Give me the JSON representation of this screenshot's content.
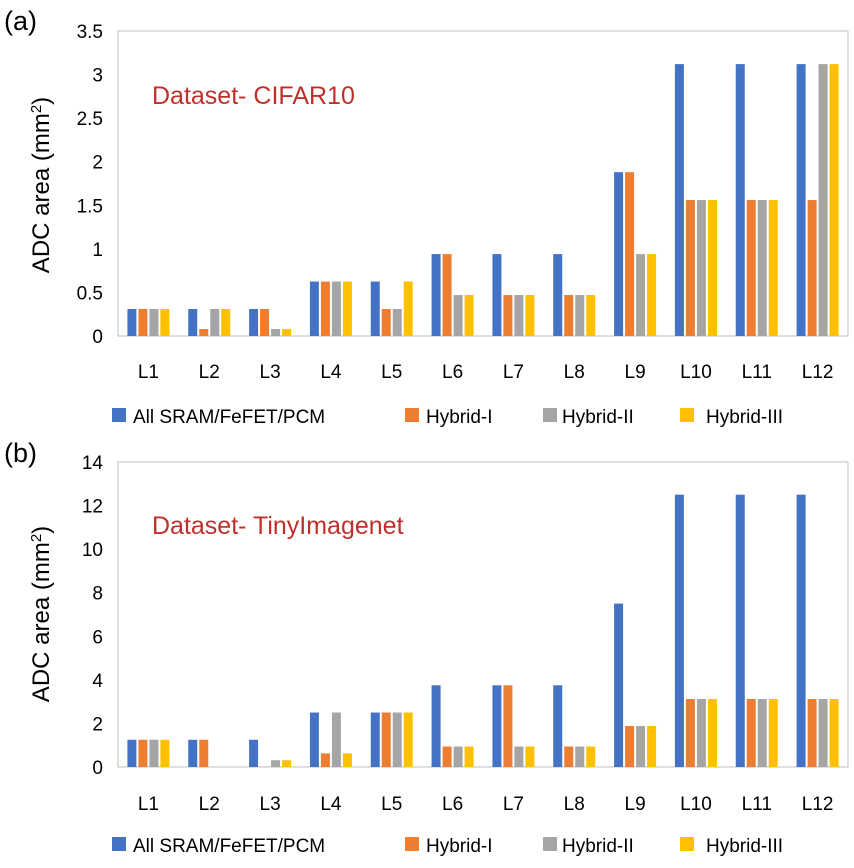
{
  "chart_data": [
    {
      "type": "bar",
      "panel_label": "(a)",
      "annotation": "Dataset- CIFAR10",
      "ylabel_main": "ADC area (mm",
      "ylabel_sup": "2",
      "ylabel_close": ")",
      "xlabel": "",
      "ylim": [
        0,
        3.5
      ],
      "yticks": [
        "0",
        "0.5",
        "1",
        "1.5",
        "2",
        "2.5",
        "3",
        "3.5"
      ],
      "ytick_values": [
        0,
        0.5,
        1,
        1.5,
        2,
        2.5,
        3,
        3.5
      ],
      "categories": [
        "L1",
        "L2",
        "L3",
        "L4",
        "L5",
        "L6",
        "L7",
        "L8",
        "L9",
        "L10",
        "L11",
        "L12"
      ],
      "series": [
        {
          "name": "All SRAM/FeFET/PCM",
          "color": "#4472c4",
          "values": [
            0.31,
            0.31,
            0.31,
            0.625,
            0.625,
            0.94,
            0.94,
            0.94,
            1.88,
            3.12,
            3.12,
            3.12
          ]
        },
        {
          "name": "Hybrid-I",
          "color": "#ed7d31",
          "values": [
            0.31,
            0.08,
            0.31,
            0.625,
            0.31,
            0.94,
            0.47,
            0.47,
            1.88,
            1.56,
            1.56,
            1.56
          ]
        },
        {
          "name": "Hybrid-II",
          "color": "#a5a5a5",
          "values": [
            0.31,
            0.31,
            0.08,
            0.625,
            0.31,
            0.47,
            0.47,
            0.47,
            0.94,
            1.56,
            1.56,
            3.12
          ]
        },
        {
          "name": "Hybrid-III",
          "color": "#ffc000",
          "values": [
            0.31,
            0.31,
            0.08,
            0.625,
            0.625,
            0.47,
            0.47,
            0.47,
            0.94,
            1.56,
            1.56,
            3.12
          ]
        }
      ]
    },
    {
      "type": "bar",
      "panel_label": "(b)",
      "annotation": "Dataset- TinyImagenet",
      "ylabel_main": "ADC area (mm",
      "ylabel_sup": "2",
      "ylabel_close": ")",
      "xlabel": "",
      "ylim": [
        0,
        14
      ],
      "yticks": [
        "0",
        "2",
        "4",
        "6",
        "8",
        "10",
        "12",
        "14"
      ],
      "ytick_values": [
        0,
        2,
        4,
        6,
        8,
        10,
        12,
        14
      ],
      "categories": [
        "L1",
        "L2",
        "L3",
        "L4",
        "L5",
        "L6",
        "L7",
        "L8",
        "L9",
        "L10",
        "L11",
        "L12"
      ],
      "series": [
        {
          "name": "All SRAM/FeFET/PCM",
          "color": "#4472c4",
          "values": [
            1.25,
            1.25,
            1.25,
            2.5,
            2.5,
            3.75,
            3.75,
            3.75,
            7.5,
            12.5,
            12.5,
            12.5
          ]
        },
        {
          "name": "Hybrid-I",
          "color": "#ed7d31",
          "values": [
            1.25,
            1.25,
            0,
            0.625,
            2.5,
            0.94,
            3.75,
            0.94,
            1.88,
            3.12,
            3.12,
            3.12
          ]
        },
        {
          "name": "Hybrid-II",
          "color": "#a5a5a5",
          "values": [
            1.25,
            0,
            0.31,
            2.5,
            2.5,
            0.94,
            0.94,
            0.94,
            1.88,
            3.12,
            3.12,
            3.12
          ]
        },
        {
          "name": "Hybrid-III",
          "color": "#ffc000",
          "values": [
            1.25,
            0,
            0.31,
            0.625,
            2.5,
            0.94,
            0.94,
            0.94,
            1.88,
            3.12,
            3.12,
            3.12
          ]
        }
      ]
    }
  ]
}
